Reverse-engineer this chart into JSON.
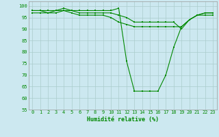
{
  "title": "",
  "xlabel": "Humidité relative (%)",
  "ylabel": "",
  "background_color": "#cce8f0",
  "grid_color": "#aacccc",
  "line_color": "#008800",
  "marker_color": "#008800",
  "xlim": [
    -0.5,
    23.5
  ],
  "ylim": [
    55,
    102
  ],
  "yticks": [
    55,
    60,
    65,
    70,
    75,
    80,
    85,
    90,
    95,
    100
  ],
  "xticks": [
    0,
    1,
    2,
    3,
    4,
    5,
    6,
    7,
    8,
    9,
    10,
    11,
    12,
    13,
    14,
    15,
    16,
    17,
    18,
    19,
    20,
    21,
    22,
    23
  ],
  "hours": [
    0,
    1,
    2,
    3,
    4,
    5,
    6,
    7,
    8,
    9,
    10,
    11,
    12,
    13,
    14,
    15,
    16,
    17,
    18,
    19,
    20,
    21,
    22,
    23
  ],
  "line1": [
    98,
    98,
    98,
    98,
    99,
    98,
    98,
    98,
    98,
    98,
    98,
    99,
    76,
    63,
    63,
    63,
    63,
    70,
    82,
    91,
    94,
    96,
    97,
    97
  ],
  "line2": [
    98,
    98,
    97,
    97,
    98,
    97,
    96,
    96,
    96,
    96,
    95,
    93,
    92,
    91,
    91,
    91,
    91,
    91,
    91,
    91,
    94,
    96,
    97,
    97
  ],
  "line3": [
    97,
    97,
    97,
    98,
    98,
    98,
    97,
    97,
    97,
    97,
    97,
    96,
    95,
    93,
    93,
    93,
    93,
    93,
    93,
    90,
    94,
    96,
    96,
    96
  ],
  "tick_fontsize": 5.0,
  "xlabel_fontsize": 6.0,
  "linewidth": 0.8,
  "markersize": 1.8
}
